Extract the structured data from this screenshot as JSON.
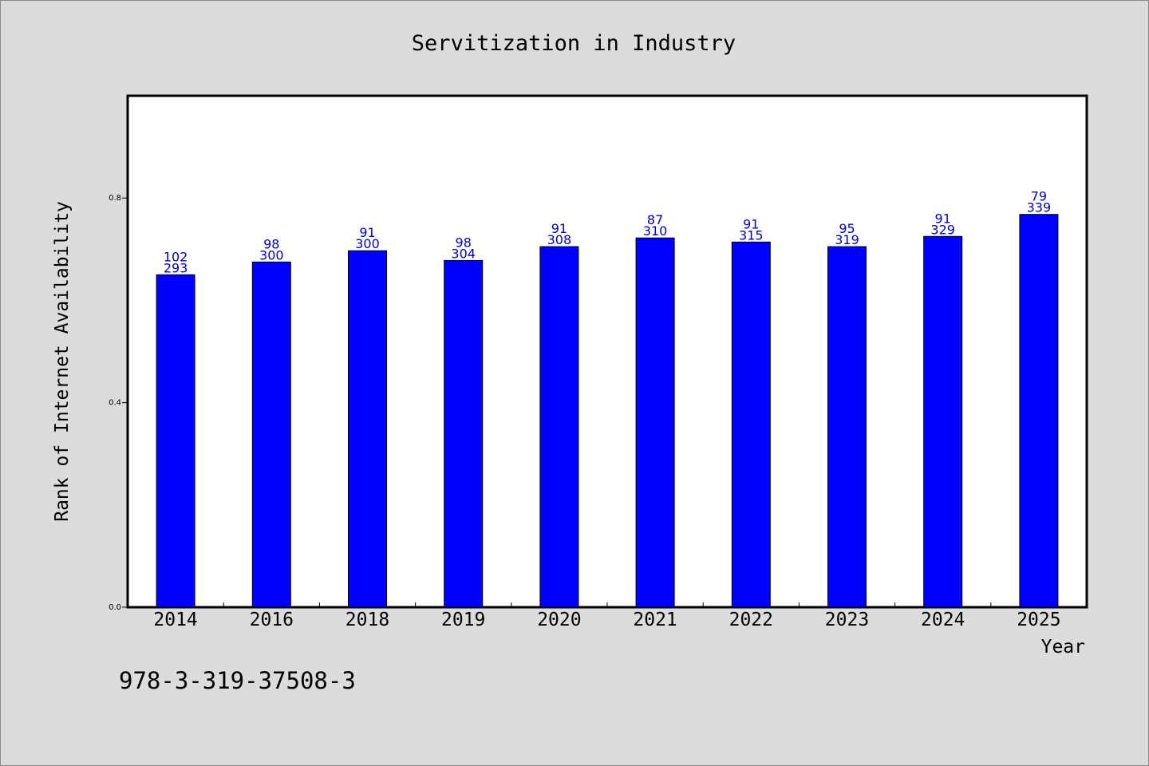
{
  "chart_data": {
    "type": "bar",
    "title": "Servitization in Industry",
    "xlabel": "Year",
    "ylabel": "Rank of Internet Availability",
    "categories": [
      "2014",
      "2016",
      "2018",
      "2019",
      "2020",
      "2021",
      "2022",
      "2023",
      "2024",
      "2025"
    ],
    "values": [
      0.65,
      0.675,
      0.697,
      0.678,
      0.705,
      0.722,
      0.714,
      0.705,
      0.725,
      0.768
    ],
    "data_labels": [
      [
        "102",
        "293"
      ],
      [
        "98",
        "300"
      ],
      [
        "91",
        "300"
      ],
      [
        "98",
        "304"
      ],
      [
        "91",
        "308"
      ],
      [
        "87",
        "310"
      ],
      [
        "91",
        "315"
      ],
      [
        "95",
        "319"
      ],
      [
        "91",
        "329"
      ],
      [
        "79",
        "339"
      ]
    ],
    "ylim": [
      0,
      1.0
    ],
    "yticks": [
      0.0,
      0.4,
      0.8
    ],
    "ytick_labels": [
      "0.0",
      "0.4",
      "0.8"
    ],
    "grid": false,
    "legend": "none",
    "colors": {
      "bar": "#0000ff",
      "bar_label": "#0000c8",
      "background": "#dcdcdc",
      "plot_background": "#ffffff"
    }
  },
  "footer": {
    "isbn": "978-3-319-37508-3"
  }
}
